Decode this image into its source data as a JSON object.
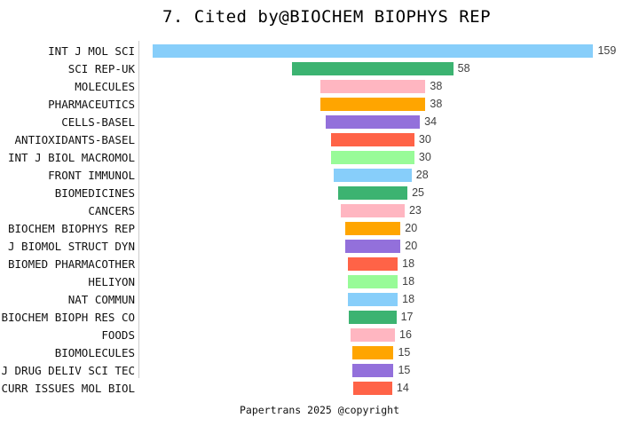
{
  "title": "7. Cited by@BIOCHEM BIOPHYS REP",
  "footer": "Papertrans 2025 @copyright",
  "chart_data": {
    "type": "bar",
    "subtype": "horizontal-centered-funnel",
    "title": "7. Cited by@BIOCHEM BIOPHYS REP",
    "xlabel": "",
    "ylabel": "",
    "grid": false,
    "legend": false,
    "value_range": [
      0,
      159
    ],
    "categories": [
      "INT J MOL SCI",
      "SCI REP-UK",
      "MOLECULES",
      "PHARMACEUTICS",
      "CELLS-BASEL",
      "ANTIOXIDANTS-BASEL",
      "INT J BIOL MACROMOL",
      "FRONT IMMUNOL",
      "BIOMEDICINES",
      "CANCERS",
      "BIOCHEM BIOPHYS REP",
      "J BIOMOL STRUCT DYN",
      "BIOMED PHARMACOTHER",
      "HELIYON",
      "NAT COMMUN",
      "BIOCHEM BIOPH RES CO",
      "FOODS",
      "BIOMOLECULES",
      "J DRUG DELIV SCI TEC",
      "CURR ISSUES MOL BIOL"
    ],
    "values": [
      159,
      58,
      38,
      38,
      34,
      30,
      30,
      28,
      25,
      23,
      20,
      20,
      18,
      18,
      18,
      17,
      16,
      15,
      15,
      14
    ],
    "palette": [
      "#87CEFA",
      "#3CB371",
      "#FFB6C1",
      "#FFA500",
      "#9370DB",
      "#FF6347",
      "#98FB98"
    ],
    "colors": [
      "#87CEFA",
      "#3CB371",
      "#FFB6C1",
      "#FFA500",
      "#9370DB",
      "#FF6347",
      "#98FB98",
      "#87CEFA",
      "#3CB371",
      "#FFB6C1",
      "#FFA500",
      "#9370DB",
      "#FF6347",
      "#98FB98",
      "#87CEFA",
      "#3CB371",
      "#FFB6C1",
      "#FFA500",
      "#9370DB",
      "#FF6347"
    ],
    "axis_line_color": "#cccccc",
    "value_label_color": "#404040",
    "label_color": "#111111"
  }
}
